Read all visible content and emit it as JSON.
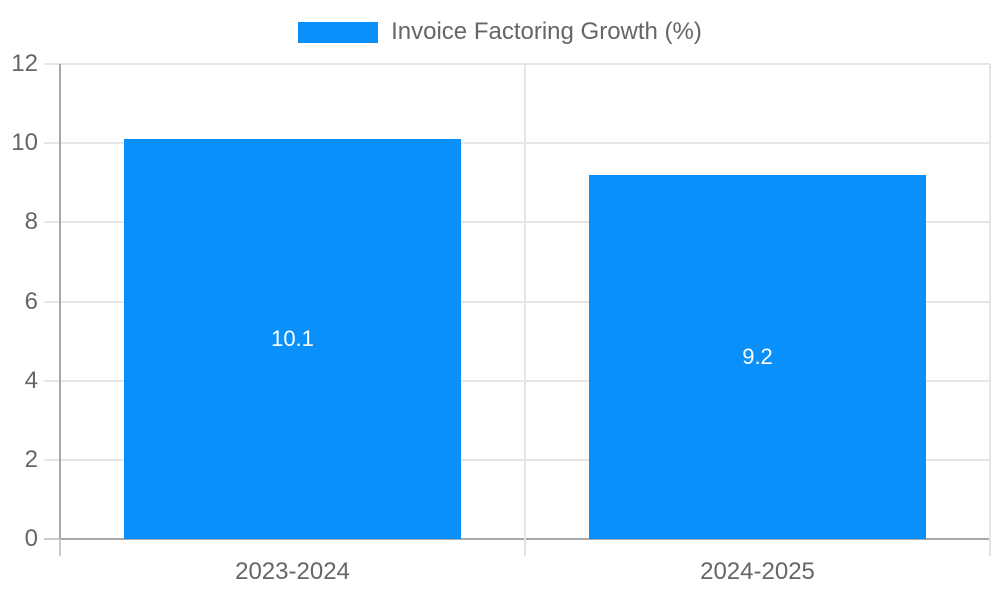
{
  "chart_data": {
    "type": "bar",
    "categories": [
      "2023-2024",
      "2024-2025"
    ],
    "series": [
      {
        "name": "Invoice Factoring Growth (%)",
        "values": [
          10.1,
          9.2
        ]
      }
    ],
    "value_labels": [
      "10.1",
      "9.2"
    ],
    "ylim": [
      0,
      12
    ],
    "yticks": [
      0,
      2,
      4,
      6,
      8,
      10,
      12
    ],
    "grid": true,
    "legend_position": "top",
    "colors": {
      "bar": "#0990fa",
      "bar_label": "#ffffff",
      "axis_text": "#666666",
      "grid_line": "#e6e6e6",
      "axis_line": "#a8a8a8",
      "tick_outside_dark": "#c9c9c9",
      "tick_outside_light": "#e2e2e2"
    }
  }
}
